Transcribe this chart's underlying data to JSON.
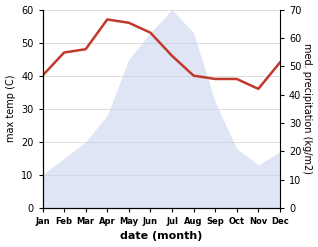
{
  "months": [
    "Jan",
    "Feb",
    "Mar",
    "Apr",
    "May",
    "Jun",
    "Jul",
    "Aug",
    "Sep",
    "Oct",
    "Nov",
    "Dec"
  ],
  "month_indices": [
    0,
    1,
    2,
    3,
    4,
    5,
    6,
    7,
    8,
    9,
    10,
    11
  ],
  "temperature": [
    40,
    47,
    48,
    57,
    56,
    53,
    46,
    40,
    39,
    39,
    36,
    44
  ],
  "precipitation_left": [
    10,
    15,
    20,
    28,
    45,
    53,
    60,
    53,
    32,
    18,
    13,
    17
  ],
  "temp_color": "#c0392b",
  "precip_fill_color": "#c8d0f0",
  "temp_ylim": [
    0,
    60
  ],
  "precip_ylim": [
    0,
    70
  ],
  "temp_yticks": [
    0,
    10,
    20,
    30,
    40,
    50,
    60
  ],
  "precip_yticks": [
    0,
    10,
    20,
    30,
    40,
    50,
    60,
    70
  ],
  "xlabel": "date (month)",
  "ylabel_left": "max temp (C)",
  "ylabel_right": "med. precipitation (kg/m2)",
  "background_color": "#ffffff",
  "grid_color": "#d0d0d0"
}
